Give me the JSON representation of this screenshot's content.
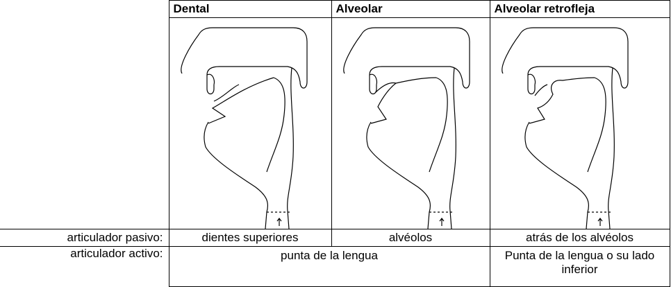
{
  "header": {
    "columns": [
      "Dental",
      "Alveolar",
      "Alveolar retrofleja"
    ]
  },
  "rows": [
    {
      "label": "articulador pasivo:",
      "cells": [
        "dientes superiores",
        "alvéolos",
        "atrás de los alvéolos"
      ]
    },
    {
      "label": "articulador activo:",
      "cells": [
        "punta de la lengua",
        "Punta de la lengua o su lado inferior"
      ]
    }
  ]
}
